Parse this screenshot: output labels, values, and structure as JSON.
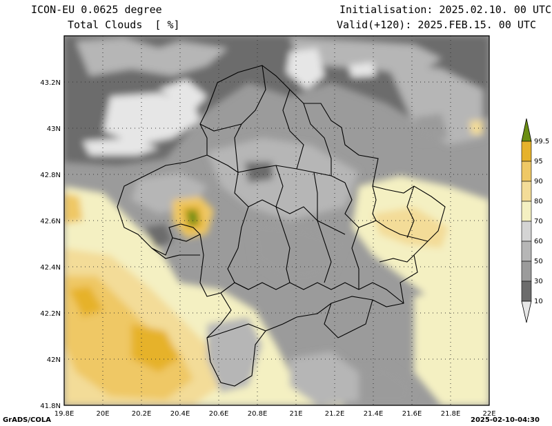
{
  "header": {
    "model": "ICON-EU 0.0625 degree",
    "field": "Total Clouds  [ %]",
    "init": "Initialisation: 2025.02.10. 00 UTC",
    "valid": "Valid(+120): 2025.FEB.15. 00 UTC"
  },
  "footer": {
    "credit": "GrADS/COLA",
    "timestamp": "2025-02-10-04:30"
  },
  "axes": {
    "lon_labels": [
      "19.8E",
      "20E",
      "20.2E",
      "20.4E",
      "20.6E",
      "20.8E",
      "21E",
      "21.2E",
      "21.4E",
      "21.6E",
      "21.8E",
      "22E"
    ],
    "lat_labels": [
      "43.2N",
      "43N",
      "42.8N",
      "42.6N",
      "42.4N",
      "42.2N",
      "42N",
      "41.8N"
    ]
  },
  "colorbar": {
    "levels": [
      "99.5",
      "95",
      "90",
      "80",
      "70",
      "60",
      "50",
      "30",
      "10"
    ],
    "colors": {
      "c995": "#6b8e12",
      "c95": "#e6b22c",
      "c90": "#efc865",
      "c80": "#f3dc98",
      "c70": "#f4f0c2",
      "c60": "#d4d4d4",
      "c50": "#b6b6b6",
      "c30": "#9b9b9b",
      "c10": "#6c6c6c",
      "c0": "#e6e6e6"
    }
  }
}
